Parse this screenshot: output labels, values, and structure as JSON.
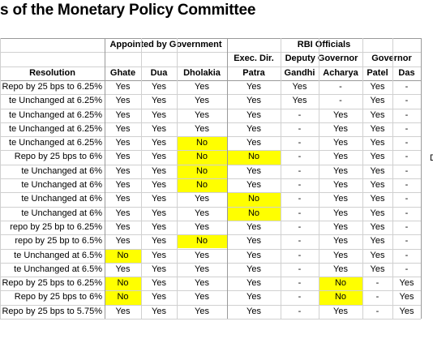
{
  "title": "s of the Monetary Policy Committee",
  "header": {
    "group_gov": "Appointed by Government",
    "group_rbi": "RBI Officials",
    "sub_exec": "Exec. Dir.",
    "sub_deputy": "Deputy Governor",
    "sub_governor": "Governor",
    "columns": [
      "Resolution",
      "Ghate",
      "Dua",
      "Dholakia",
      "Patra",
      "Gandhi",
      "Acharya",
      "Patel",
      "Das"
    ]
  },
  "highlight_color": "#ffff00",
  "rows": [
    {
      "resolution": "Repo by 25 bps to 6.25%",
      "values": [
        "Yes",
        "Yes",
        "Yes",
        "Yes",
        "Yes",
        "-",
        "Yes",
        "-"
      ],
      "highlight": [
        false,
        false,
        false,
        false,
        false,
        false,
        false,
        false
      ]
    },
    {
      "resolution": "te Unchanged at 6.25%",
      "values": [
        "Yes",
        "Yes",
        "Yes",
        "Yes",
        "Yes",
        "-",
        "Yes",
        "-"
      ],
      "highlight": [
        false,
        false,
        false,
        false,
        false,
        false,
        false,
        false
      ]
    },
    {
      "resolution": "te Unchanged at 6.25%",
      "values": [
        "Yes",
        "Yes",
        "Yes",
        "Yes",
        "-",
        "Yes",
        "Yes",
        "-"
      ],
      "highlight": [
        false,
        false,
        false,
        false,
        false,
        false,
        false,
        false
      ]
    },
    {
      "resolution": "te Unchanged at 6.25%",
      "values": [
        "Yes",
        "Yes",
        "Yes",
        "Yes",
        "-",
        "Yes",
        "Yes",
        "-"
      ],
      "highlight": [
        false,
        false,
        false,
        false,
        false,
        false,
        false,
        false
      ]
    },
    {
      "resolution": "te Unchanged at 6.25%",
      "values": [
        "Yes",
        "Yes",
        "No",
        "Yes",
        "-",
        "Yes",
        "Yes",
        "-"
      ],
      "highlight": [
        false,
        false,
        true,
        false,
        false,
        false,
        false,
        false
      ]
    },
    {
      "resolution": "Repo by 25 bps to 6%",
      "values": [
        "Yes",
        "Yes",
        "No",
        "No",
        "-",
        "Yes",
        "Yes",
        "-"
      ],
      "highlight": [
        false,
        false,
        true,
        true,
        false,
        false,
        false,
        false
      ]
    },
    {
      "resolution": "te Unchanged at 6%",
      "values": [
        "Yes",
        "Yes",
        "No",
        "Yes",
        "-",
        "Yes",
        "Yes",
        "-"
      ],
      "highlight": [
        false,
        false,
        true,
        false,
        false,
        false,
        false,
        false
      ]
    },
    {
      "resolution": "te Unchanged at 6%",
      "values": [
        "Yes",
        "Yes",
        "No",
        "Yes",
        "-",
        "Yes",
        "Yes",
        "-"
      ],
      "highlight": [
        false,
        false,
        true,
        false,
        false,
        false,
        false,
        false
      ]
    },
    {
      "resolution": "te Unchanged at 6%",
      "values": [
        "Yes",
        "Yes",
        "Yes",
        "No",
        "-",
        "Yes",
        "Yes",
        "-"
      ],
      "highlight": [
        false,
        false,
        false,
        true,
        false,
        false,
        false,
        false
      ]
    },
    {
      "resolution": "te Unchanged at 6%",
      "values": [
        "Yes",
        "Yes",
        "Yes",
        "No",
        "-",
        "Yes",
        "Yes",
        "-"
      ],
      "highlight": [
        false,
        false,
        false,
        true,
        false,
        false,
        false,
        false
      ]
    },
    {
      "resolution": "repo by 25 bp to 6.25%",
      "values": [
        "Yes",
        "Yes",
        "Yes",
        "Yes",
        "-",
        "Yes",
        "Yes",
        "-"
      ],
      "highlight": [
        false,
        false,
        false,
        false,
        false,
        false,
        false,
        false
      ]
    },
    {
      "resolution": "repo by 25 bp to 6.5%",
      "values": [
        "Yes",
        "Yes",
        "No",
        "Yes",
        "-",
        "Yes",
        "Yes",
        "-"
      ],
      "highlight": [
        false,
        false,
        true,
        false,
        false,
        false,
        false,
        false
      ]
    },
    {
      "resolution": "te Unchanged at 6.5%",
      "values": [
        "No",
        "Yes",
        "Yes",
        "Yes",
        "-",
        "Yes",
        "Yes",
        "-"
      ],
      "highlight": [
        true,
        false,
        false,
        false,
        false,
        false,
        false,
        false
      ]
    },
    {
      "resolution": "te Unchanged at 6.5%",
      "values": [
        "Yes",
        "Yes",
        "Yes",
        "Yes",
        "-",
        "Yes",
        "Yes",
        "-"
      ],
      "highlight": [
        false,
        false,
        false,
        false,
        false,
        false,
        false,
        false
      ]
    },
    {
      "resolution": "Repo by 25 bps to 6.25%",
      "values": [
        "No",
        "Yes",
        "Yes",
        "Yes",
        "-",
        "No",
        "-",
        "Yes"
      ],
      "highlight": [
        true,
        false,
        false,
        false,
        false,
        true,
        false,
        false
      ]
    },
    {
      "resolution": "Repo by 25 bps to 6%",
      "values": [
        "No",
        "Yes",
        "Yes",
        "Yes",
        "-",
        "No",
        "-",
        "Yes"
      ],
      "highlight": [
        true,
        false,
        false,
        false,
        false,
        true,
        false,
        false
      ]
    },
    {
      "resolution": "Repo by 25 bps to 5.75%",
      "values": [
        "Yes",
        "Yes",
        "Yes",
        "Yes",
        "-",
        "Yes",
        "-",
        "Yes"
      ],
      "highlight": [
        false,
        false,
        false,
        false,
        false,
        false,
        false,
        false
      ]
    }
  ],
  "edge_mark": "D"
}
